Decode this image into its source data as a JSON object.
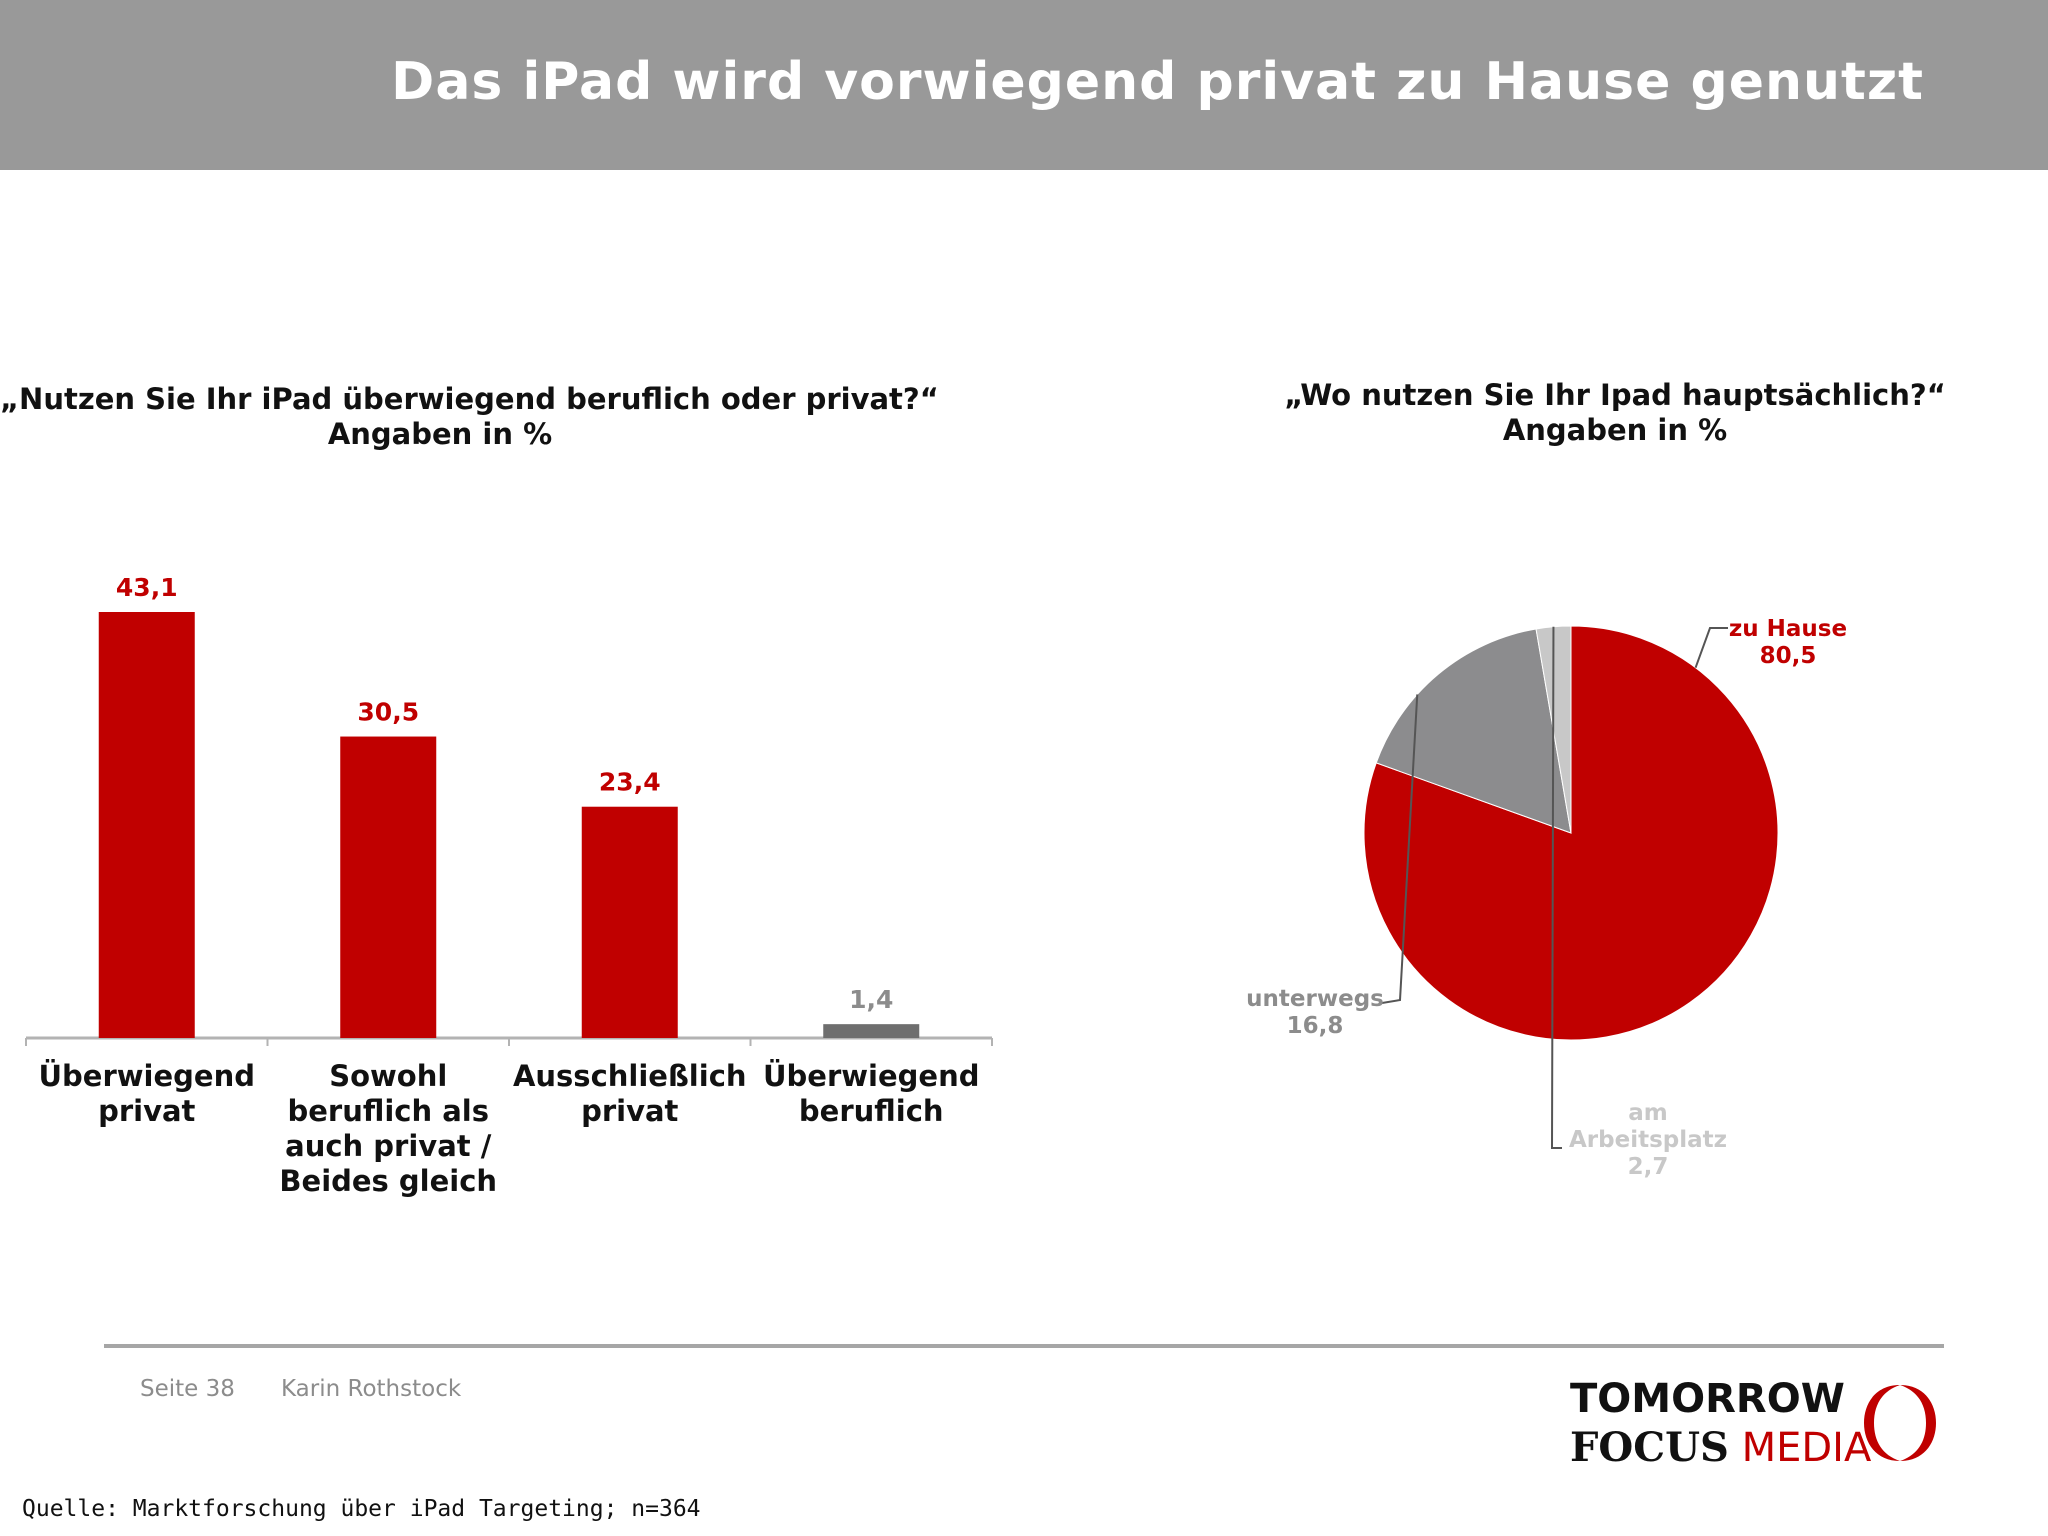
{
  "header": {
    "title": "Das iPad wird vorwiegend privat zu Hause genutzt"
  },
  "colors": {
    "red": "#c00000",
    "dark_gray": "#6e6e6e",
    "mid_gray": "#8c8c8e",
    "light_gray": "#c8c8c8",
    "header_gray": "#999999"
  },
  "chart_data": [
    {
      "type": "bar",
      "title": "„Nutzen Sie Ihr iPad überwiegend beruflich oder privat?“",
      "subtitle": "Angaben in %",
      "categories": [
        "Überwiegend privat",
        "Sowohl beruflich als auch privat / Beides gleich",
        "Ausschließlich privat",
        "Überwiegend beruflich"
      ],
      "category_lines": [
        [
          "Überwiegend",
          "privat"
        ],
        [
          "Sowohl",
          "beruflich als",
          "auch privat /",
          "Beides gleich"
        ],
        [
          "Ausschließlich",
          "privat"
        ],
        [
          "Überwiegend",
          "beruflich"
        ]
      ],
      "values": [
        43.1,
        30.5,
        23.4,
        1.4
      ],
      "value_labels": [
        "43,1",
        "30,5",
        "23,4",
        "1,4"
      ],
      "bar_colors": [
        "#c00000",
        "#c00000",
        "#c00000",
        "#6e6e6e"
      ],
      "label_colors": [
        "#c00000",
        "#c00000",
        "#c00000",
        "#8c8c8c"
      ],
      "ylim": [
        0,
        50
      ],
      "grid": false
    },
    {
      "type": "pie",
      "title": "„Wo nutzen Sie Ihr Ipad hauptsächlich?“",
      "subtitle": "Angaben in %",
      "slices": [
        {
          "label": "zu Hause",
          "value": 80.5,
          "value_label": "80,5",
          "color": "#c00000",
          "label_color": "#c00000"
        },
        {
          "label": "unterwegs",
          "value": 16.8,
          "value_label": "16,8",
          "color": "#8c8c8e",
          "label_color": "#8c8c8c"
        },
        {
          "label": "am Arbeitsplatz",
          "value": 2.7,
          "value_label": "2,7",
          "color": "#c8c8c8",
          "label_color": "#c8c8c8"
        }
      ],
      "slice_label_lines": [
        [
          "zu Hause",
          "80,5"
        ],
        [
          "unterwegs",
          "16,8"
        ],
        [
          "am",
          "Arbeitsplatz",
          "2,7"
        ]
      ]
    }
  ],
  "footer": {
    "page": "Seite 38",
    "author": "Karin Rothstock"
  },
  "logo": {
    "line1": "TOMORROW",
    "focus": "FOCUS",
    "media": "MEDIA"
  },
  "source": "Quelle: Marktforschung über iPad Targeting; n=364"
}
